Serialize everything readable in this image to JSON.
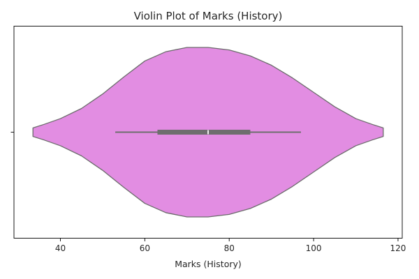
{
  "chart_data": {
    "type": "violin",
    "title": "Violin Plot of Marks (History)",
    "xlabel": "Marks (History)",
    "ylabel": "",
    "xlim": [
      29,
      121
    ],
    "xticks": [
      40,
      60,
      80,
      100,
      120
    ],
    "xtick_labels": [
      "40",
      "60",
      "80",
      "100",
      "120"
    ],
    "yticks": [
      ""
    ],
    "grid": false,
    "orientation": "horizontal",
    "fill_color": "#e28de2",
    "edge_color": "#6b6b6b",
    "violin": {
      "range": [
        33.5,
        116.5
      ],
      "density": [
        [
          33.5,
          0.05
        ],
        [
          36,
          0.09
        ],
        [
          40,
          0.16
        ],
        [
          45,
          0.28
        ],
        [
          50,
          0.45
        ],
        [
          55,
          0.65
        ],
        [
          60,
          0.84
        ],
        [
          65,
          0.95
        ],
        [
          70,
          1.0
        ],
        [
          75,
          1.0
        ],
        [
          80,
          0.97
        ],
        [
          85,
          0.9
        ],
        [
          90,
          0.79
        ],
        [
          95,
          0.64
        ],
        [
          100,
          0.47
        ],
        [
          105,
          0.3
        ],
        [
          110,
          0.16
        ],
        [
          114,
          0.09
        ],
        [
          116.5,
          0.05
        ]
      ]
    },
    "box": {
      "whisker_low": 53,
      "q1": 63,
      "median": 75,
      "q3": 85,
      "whisker_high": 97
    }
  }
}
